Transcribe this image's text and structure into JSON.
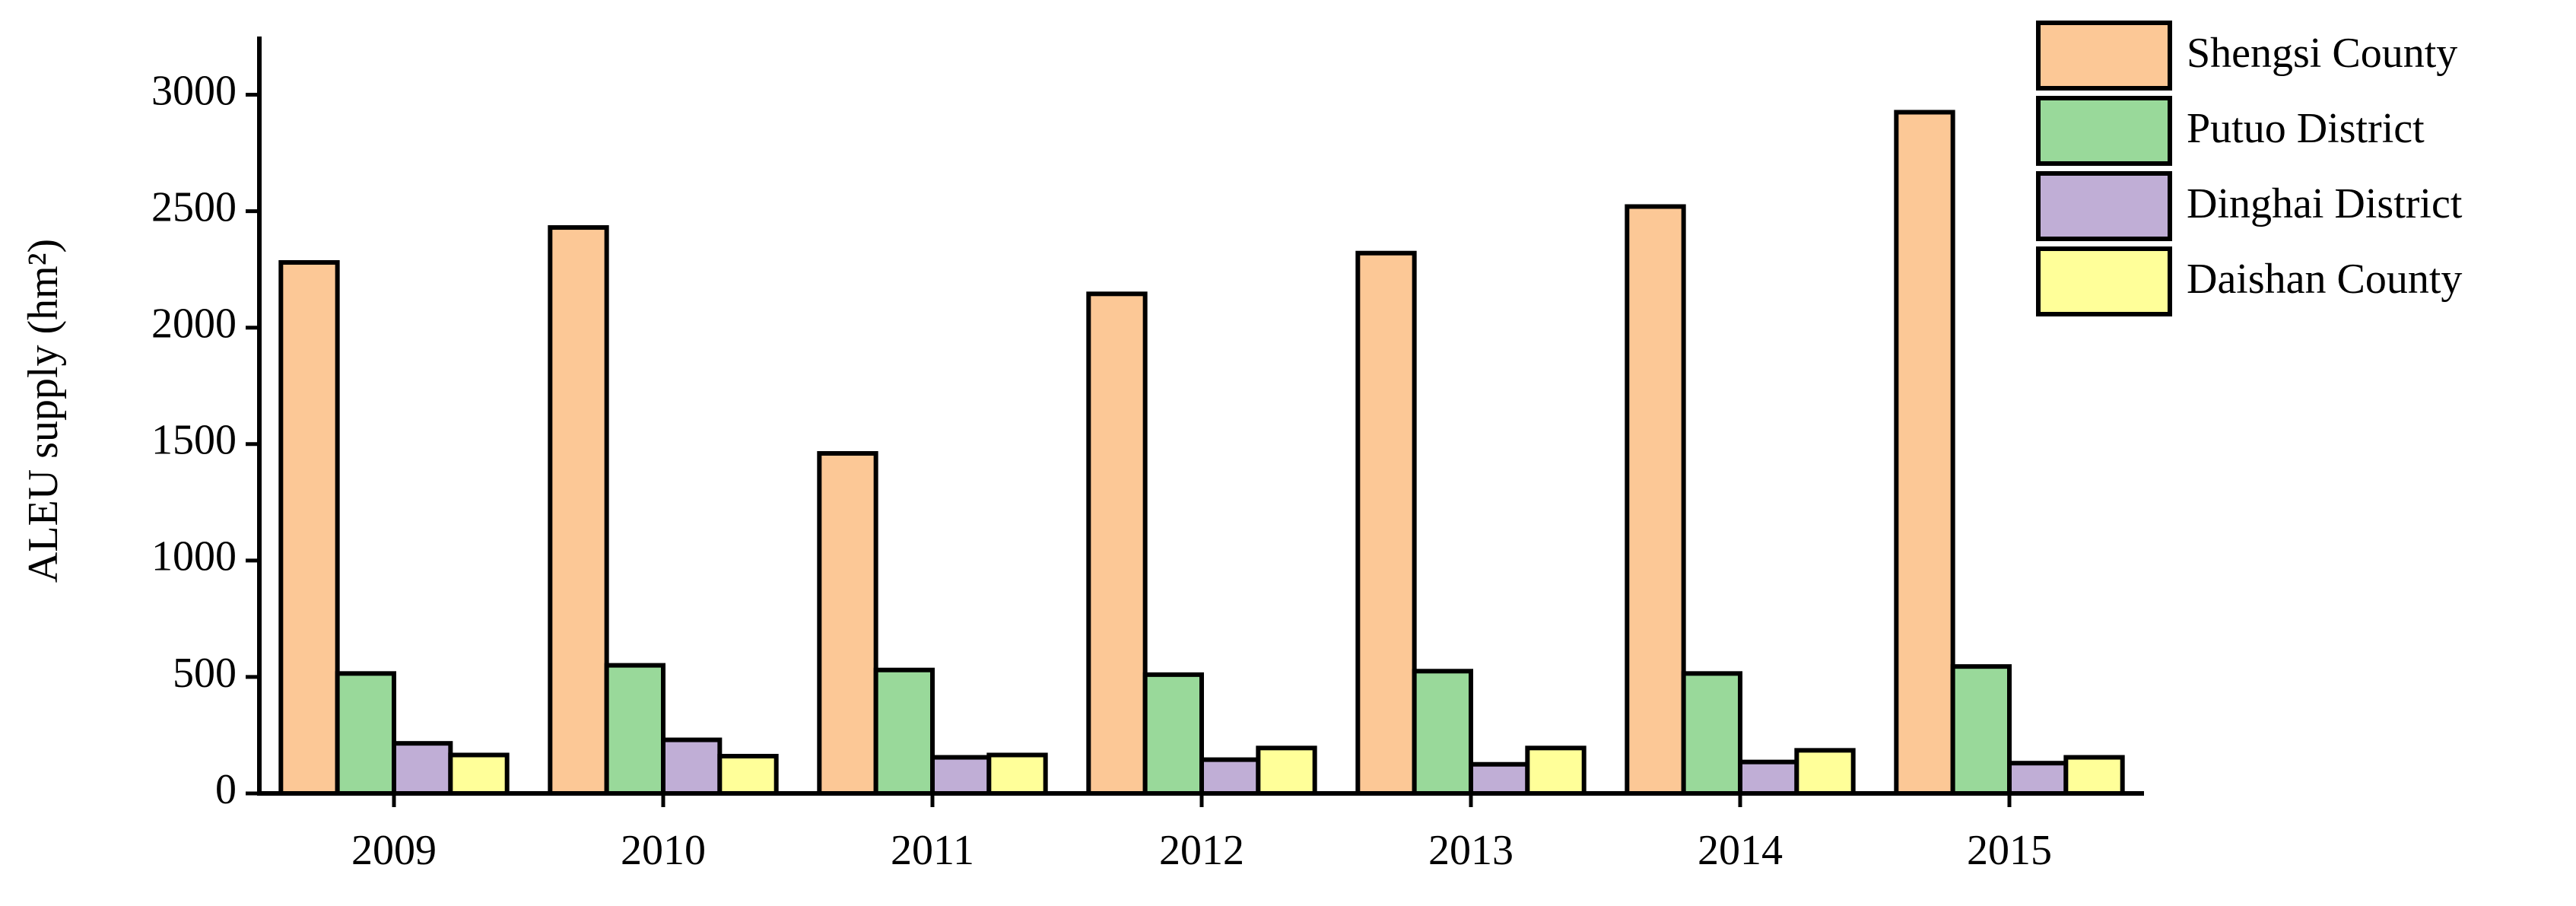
{
  "chart_data": {
    "type": "bar",
    "ylabel": "ALEU supply (hm²)",
    "categories": [
      "2009",
      "2010",
      "2011",
      "2012",
      "2013",
      "2014",
      "2015"
    ],
    "series": [
      {
        "name": "Shengsi County",
        "color": "#fcc896",
        "values": [
          2280,
          2430,
          1460,
          2145,
          2320,
          2520,
          2925
        ]
      },
      {
        "name": "Putuo District",
        "color": "#99d99a",
        "values": [
          515,
          550,
          530,
          510,
          525,
          515,
          545
        ]
      },
      {
        "name": "Dinghai District",
        "color": "#c0aed6",
        "values": [
          215,
          230,
          155,
          145,
          125,
          135,
          130
        ]
      },
      {
        "name": "Daishan County",
        "color": "#ffff99",
        "values": [
          165,
          160,
          165,
          195,
          195,
          185,
          155
        ]
      }
    ],
    "ylim": [
      0,
      3250
    ],
    "yticks": [
      0,
      500,
      1000,
      1500,
      2000,
      2500,
      3000
    ],
    "legend": "upper right"
  }
}
